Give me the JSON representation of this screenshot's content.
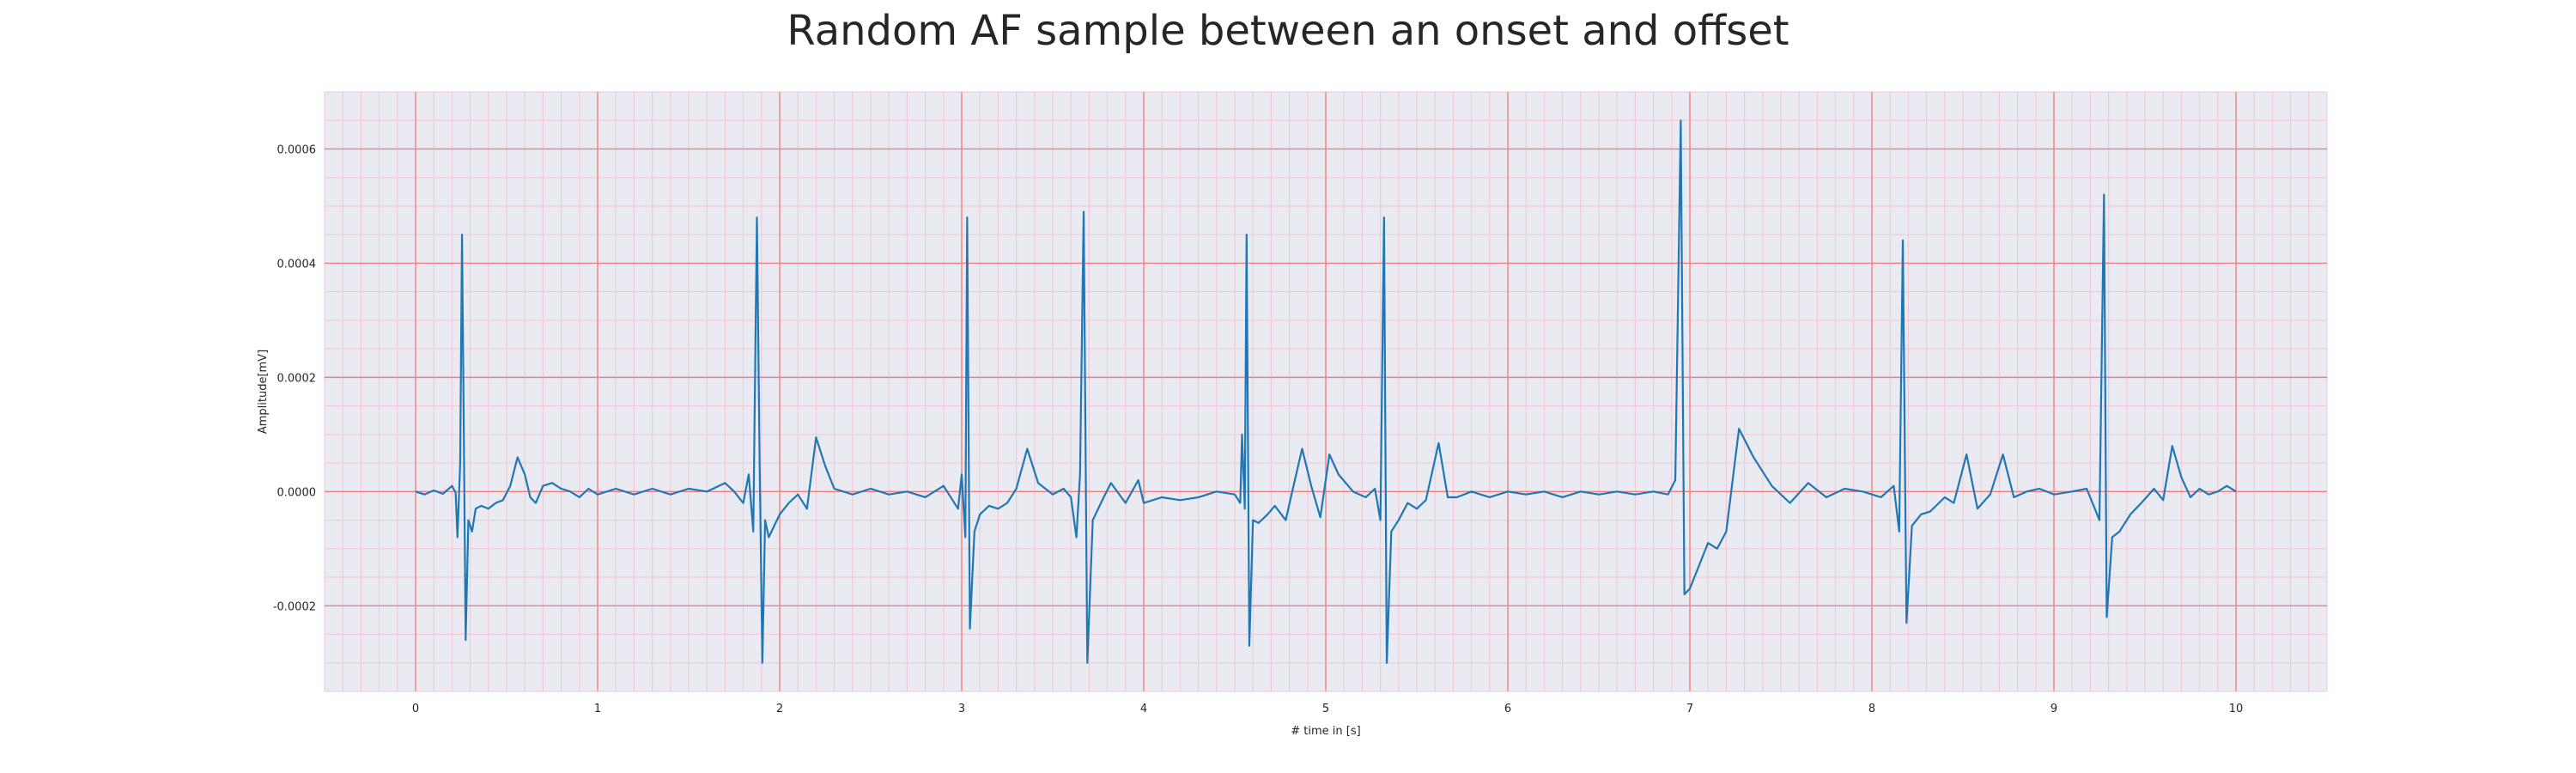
{
  "chart_data": {
    "type": "line",
    "title": "Random AF sample between an onset and offset",
    "xlabel": "# time in [s]",
    "ylabel": "Amplitude[mV]",
    "xlim": [
      -0.5,
      10.5
    ],
    "ylim": [
      -0.00035,
      0.0007
    ],
    "grid": true,
    "minor_grid": true,
    "legend": "none",
    "colors": {
      "line": "#1f77b4",
      "background": "#eaeaf2",
      "major_grid": "#f08080",
      "minor_grid": "#f2c6d2",
      "text": "#262626"
    },
    "x_ticks": [
      0,
      1,
      2,
      3,
      4,
      5,
      6,
      7,
      8,
      9,
      10
    ],
    "x_tick_labels": [
      "0",
      "1",
      "2",
      "3",
      "4",
      "5",
      "6",
      "7",
      "8",
      "9",
      "10"
    ],
    "y_ticks": [
      -0.0002,
      0.0,
      0.0002,
      0.0004,
      0.0006
    ],
    "y_tick_labels": [
      "-0.0002",
      "0.0000",
      "0.0002",
      "0.0004",
      "0.0006"
    ],
    "series": [
      {
        "points": [
          [
            0.0,
            0.0
          ],
          [
            0.05,
            -5e-06
          ],
          [
            0.1,
            2e-06
          ],
          [
            0.15,
            -4e-06
          ],
          [
            0.2,
            1e-05
          ],
          [
            0.22,
            -2e-06
          ],
          [
            0.23,
            -8e-05
          ],
          [
            0.245,
            5e-05
          ],
          [
            0.255,
            0.00045
          ],
          [
            0.265,
            0.0001
          ],
          [
            0.275,
            -0.00026
          ],
          [
            0.29,
            -5e-05
          ],
          [
            0.31,
            -7e-05
          ],
          [
            0.33,
            -3e-05
          ],
          [
            0.36,
            -2.5e-05
          ],
          [
            0.4,
            -3e-05
          ],
          [
            0.44,
            -2e-05
          ],
          [
            0.48,
            -1.5e-05
          ],
          [
            0.52,
            1e-05
          ],
          [
            0.56,
            6e-05
          ],
          [
            0.6,
            3e-05
          ],
          [
            0.63,
            -1e-05
          ],
          [
            0.66,
            -2e-05
          ],
          [
            0.7,
            1e-05
          ],
          [
            0.75,
            1.5e-05
          ],
          [
            0.8,
            5e-06
          ],
          [
            0.85,
            0.0
          ],
          [
            0.9,
            -1e-05
          ],
          [
            0.95,
            5e-06
          ],
          [
            1.0,
            -5e-06
          ],
          [
            1.1,
            5e-06
          ],
          [
            1.2,
            -5e-06
          ],
          [
            1.3,
            5e-06
          ],
          [
            1.4,
            -5e-06
          ],
          [
            1.5,
            5e-06
          ],
          [
            1.6,
            0.0
          ],
          [
            1.7,
            1.5e-05
          ],
          [
            1.75,
            0.0
          ],
          [
            1.8,
            -2e-05
          ],
          [
            1.83,
            3e-05
          ],
          [
            1.855,
            -7e-05
          ],
          [
            1.875,
            0.00048
          ],
          [
            1.89,
            5e-05
          ],
          [
            1.905,
            -0.0003
          ],
          [
            1.92,
            -5e-05
          ],
          [
            1.94,
            -8e-05
          ],
          [
            1.97,
            -6e-05
          ],
          [
            2.0,
            -4e-05
          ],
          [
            2.05,
            -2e-05
          ],
          [
            2.1,
            -5e-06
          ],
          [
            2.15,
            -3e-05
          ],
          [
            2.2,
            9.5e-05
          ],
          [
            2.25,
            4.5e-05
          ],
          [
            2.3,
            5e-06
          ],
          [
            2.4,
            -5e-06
          ],
          [
            2.5,
            5e-06
          ],
          [
            2.6,
            -5e-06
          ],
          [
            2.7,
            0.0
          ],
          [
            2.8,
            -1e-05
          ],
          [
            2.9,
            1e-05
          ],
          [
            2.98,
            -3e-05
          ],
          [
            3.0,
            3e-05
          ],
          [
            3.02,
            -8e-05
          ],
          [
            3.03,
            0.00048
          ],
          [
            3.045,
            -0.00024
          ],
          [
            3.07,
            -7e-05
          ],
          [
            3.1,
            -4e-05
          ],
          [
            3.15,
            -2.5e-05
          ],
          [
            3.2,
            -3e-05
          ],
          [
            3.25,
            -2e-05
          ],
          [
            3.3,
            5e-06
          ],
          [
            3.36,
            7.5e-05
          ],
          [
            3.42,
            1.5e-05
          ],
          [
            3.5,
            -5e-06
          ],
          [
            3.56,
            5e-06
          ],
          [
            3.6,
            -1e-05
          ],
          [
            3.63,
            -8e-05
          ],
          [
            3.65,
            3e-05
          ],
          [
            3.67,
            0.00049
          ],
          [
            3.69,
            -0.0003
          ],
          [
            3.72,
            -5e-05
          ],
          [
            3.75,
            -3e-05
          ],
          [
            3.78,
            -1e-05
          ],
          [
            3.82,
            1.5e-05
          ],
          [
            3.9,
            -2e-05
          ],
          [
            3.97,
            2e-05
          ],
          [
            4.0,
            -2e-05
          ],
          [
            4.1,
            -1e-05
          ],
          [
            4.2,
            -1.5e-05
          ],
          [
            4.3,
            -1e-05
          ],
          [
            4.4,
            0.0
          ],
          [
            4.5,
            -5e-06
          ],
          [
            4.53,
            -2e-05
          ],
          [
            4.54,
            0.0001
          ],
          [
            4.555,
            -3e-05
          ],
          [
            4.565,
            0.00045
          ],
          [
            4.58,
            -0.00027
          ],
          [
            4.6,
            -5e-05
          ],
          [
            4.63,
            -5.5e-05
          ],
          [
            4.68,
            -4e-05
          ],
          [
            4.72,
            -2.5e-05
          ],
          [
            4.78,
            -5e-05
          ],
          [
            4.83,
            2e-05
          ],
          [
            4.87,
            7.5e-05
          ],
          [
            4.92,
            1e-05
          ],
          [
            4.97,
            -4.5e-05
          ],
          [
            5.02,
            6.5e-05
          ],
          [
            5.07,
            3e-05
          ],
          [
            5.15,
            0.0
          ],
          [
            5.22,
            -1e-05
          ],
          [
            5.27,
            5e-06
          ],
          [
            5.3,
            -5e-05
          ],
          [
            5.32,
            0.00048
          ],
          [
            5.335,
            -0.0003
          ],
          [
            5.36,
            -7e-05
          ],
          [
            5.4,
            -5e-05
          ],
          [
            5.45,
            -2e-05
          ],
          [
            5.5,
            -3e-05
          ],
          [
            5.55,
            -1.5e-05
          ],
          [
            5.62,
            8.5e-05
          ],
          [
            5.67,
            -1e-05
          ],
          [
            5.72,
            -1e-05
          ],
          [
            5.8,
            0.0
          ],
          [
            5.9,
            -1e-05
          ],
          [
            6.0,
            0.0
          ],
          [
            6.1,
            -5e-06
          ],
          [
            6.2,
            0.0
          ],
          [
            6.3,
            -1e-05
          ],
          [
            6.4,
            0.0
          ],
          [
            6.5,
            -5e-06
          ],
          [
            6.6,
            0.0
          ],
          [
            6.7,
            -5e-06
          ],
          [
            6.8,
            0.0
          ],
          [
            6.88,
            -5e-06
          ],
          [
            6.92,
            2e-05
          ],
          [
            6.95,
            0.00065
          ],
          [
            6.97,
            -0.00018
          ],
          [
            7.0,
            -0.00017
          ],
          [
            7.05,
            -0.00013
          ],
          [
            7.1,
            -9e-05
          ],
          [
            7.15,
            -0.0001
          ],
          [
            7.2,
            -7e-05
          ],
          [
            7.27,
            0.00011
          ],
          [
            7.35,
            6e-05
          ],
          [
            7.45,
            1e-05
          ],
          [
            7.55,
            -2e-05
          ],
          [
            7.65,
            1.5e-05
          ],
          [
            7.75,
            -1e-05
          ],
          [
            7.85,
            5e-06
          ],
          [
            7.95,
            0.0
          ],
          [
            8.05,
            -1e-05
          ],
          [
            8.12,
            1e-05
          ],
          [
            8.15,
            -7e-05
          ],
          [
            8.17,
            0.00044
          ],
          [
            8.19,
            -0.00023
          ],
          [
            8.22,
            -6e-05
          ],
          [
            8.27,
            -4e-05
          ],
          [
            8.32,
            -3.5e-05
          ],
          [
            8.4,
            -1e-05
          ],
          [
            8.45,
            -2e-05
          ],
          [
            8.52,
            6.5e-05
          ],
          [
            8.58,
            -3e-05
          ],
          [
            8.65,
            -5e-06
          ],
          [
            8.72,
            6.5e-05
          ],
          [
            8.78,
            -1e-05
          ],
          [
            8.85,
            0.0
          ],
          [
            8.92,
            5e-06
          ],
          [
            9.0,
            -5e-06
          ],
          [
            9.1,
            0.0
          ],
          [
            9.18,
            5e-06
          ],
          [
            9.25,
            -5e-05
          ],
          [
            9.275,
            0.00052
          ],
          [
            9.29,
            -0.00022
          ],
          [
            9.32,
            -8e-05
          ],
          [
            9.36,
            -7e-05
          ],
          [
            9.42,
            -4e-05
          ],
          [
            9.48,
            -2e-05
          ],
          [
            9.55,
            5e-06
          ],
          [
            9.6,
            -1.5e-05
          ],
          [
            9.65,
            8e-05
          ],
          [
            9.7,
            2.5e-05
          ],
          [
            9.75,
            -1e-05
          ],
          [
            9.8,
            5e-06
          ],
          [
            9.85,
            -5e-06
          ],
          [
            9.9,
            0.0
          ],
          [
            9.95,
            1e-05
          ],
          [
            10.0,
            0.0
          ]
        ]
      }
    ]
  }
}
